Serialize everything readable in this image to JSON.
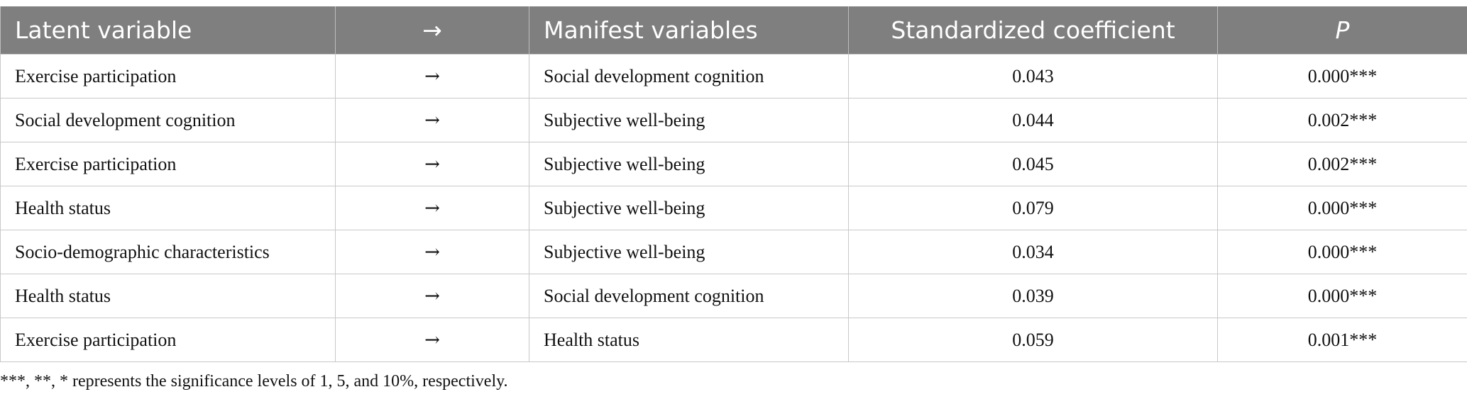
{
  "table": {
    "headers": [
      "Latent variable",
      "→",
      "Manifest variables",
      "Standardized coefficient",
      "P"
    ],
    "rows": [
      [
        "Exercise participation",
        "→",
        "Social development cognition",
        "0.043",
        "0.000***"
      ],
      [
        "Social development cognition",
        "→",
        "Subjective well-being",
        "0.044",
        "0.002***"
      ],
      [
        "Exercise participation",
        "→",
        "Subjective well-being",
        "0.045",
        "0.002***"
      ],
      [
        "Health status",
        "→",
        "Subjective well-being",
        "0.079",
        "0.000***"
      ],
      [
        "Socio-demographic characteristics",
        "→",
        "Subjective well-being",
        "0.034",
        "0.000***"
      ],
      [
        "Health status",
        "→",
        "Social development cognition",
        "0.039",
        "0.000***"
      ],
      [
        "Exercise participation",
        "→",
        "Health status",
        "0.059",
        "0.001***"
      ]
    ]
  },
  "footnote": "***, **, * represents the significance levels of 1, 5, and 10%, respectively.",
  "colors": {
    "header_bg": "#7f7f7f",
    "header_text": "#ffffff",
    "border": "#c8c8c8"
  }
}
